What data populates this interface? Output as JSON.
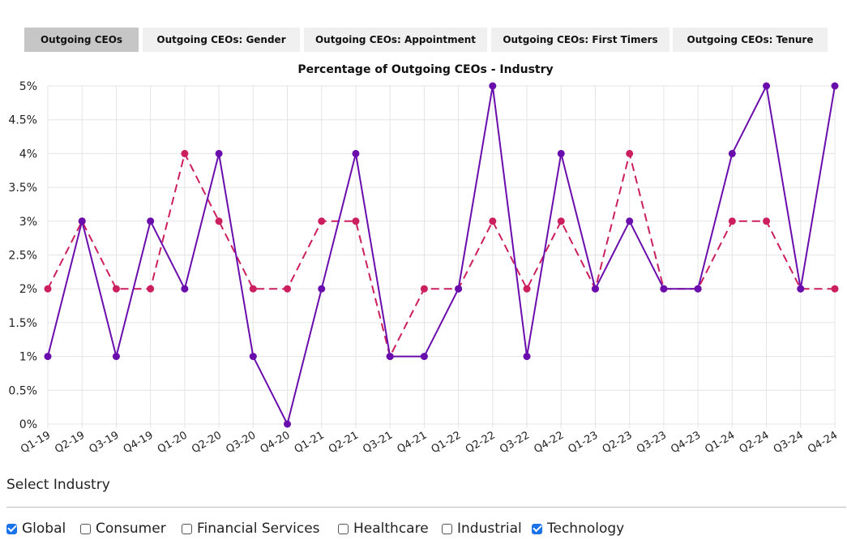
{
  "tabs": [
    {
      "label": "Outgoing CEOs",
      "active": true
    },
    {
      "label": "Outgoing CEOs: Gender",
      "active": false
    },
    {
      "label": "Outgoing CEOs: Appointment",
      "active": false
    },
    {
      "label": "Outgoing CEOs: First Timers",
      "active": false
    },
    {
      "label": "Outgoing CEOs: Tenure",
      "active": false
    }
  ],
  "chart_data": {
    "type": "line",
    "title": "Percentage of Outgoing CEOs - Industry",
    "categories": [
      "Q1-19",
      "Q2-19",
      "Q3-19",
      "Q4-19",
      "Q1-20",
      "Q2-20",
      "Q3-20",
      "Q4-20",
      "Q1-21",
      "Q2-21",
      "Q3-21",
      "Q4-21",
      "Q1-22",
      "Q2-22",
      "Q3-22",
      "Q4-22",
      "Q1-23",
      "Q2-23",
      "Q3-23",
      "Q4-23",
      "Q1-24",
      "Q2-24",
      "Q3-24",
      "Q4-24"
    ],
    "ylim": [
      0,
      5
    ],
    "yticks": [
      "0%",
      "0.5%",
      "1%",
      "1.5%",
      "2%",
      "2.5%",
      "3%",
      "3.5%",
      "4%",
      "4.5%",
      "5%"
    ],
    "grid": true,
    "series": [
      {
        "values": [
          1,
          3,
          1,
          3,
          2,
          4,
          1,
          0,
          2,
          4,
          1,
          1,
          2,
          5,
          1,
          4,
          2,
          3,
          2,
          2,
          4,
          5,
          2,
          5
        ],
        "color": "#6a0dad",
        "dashed": false
      },
      {
        "values": [
          2,
          3,
          2,
          2,
          4,
          3,
          2,
          2,
          3,
          3,
          1,
          2,
          2,
          3,
          2,
          3,
          2,
          4,
          2,
          2,
          3,
          3,
          2,
          2
        ],
        "color": "#cc1f5f",
        "dashed": true
      }
    ]
  },
  "industry_select": {
    "title": "Select Industry",
    "options": [
      {
        "label": "Global",
        "checked": true
      },
      {
        "label": "Consumer",
        "checked": false
      },
      {
        "label": "Financial Services",
        "checked": false
      },
      {
        "label": "Healthcare",
        "checked": false
      },
      {
        "label": "Industrial",
        "checked": false
      },
      {
        "label": "Technology",
        "checked": true
      }
    ]
  }
}
